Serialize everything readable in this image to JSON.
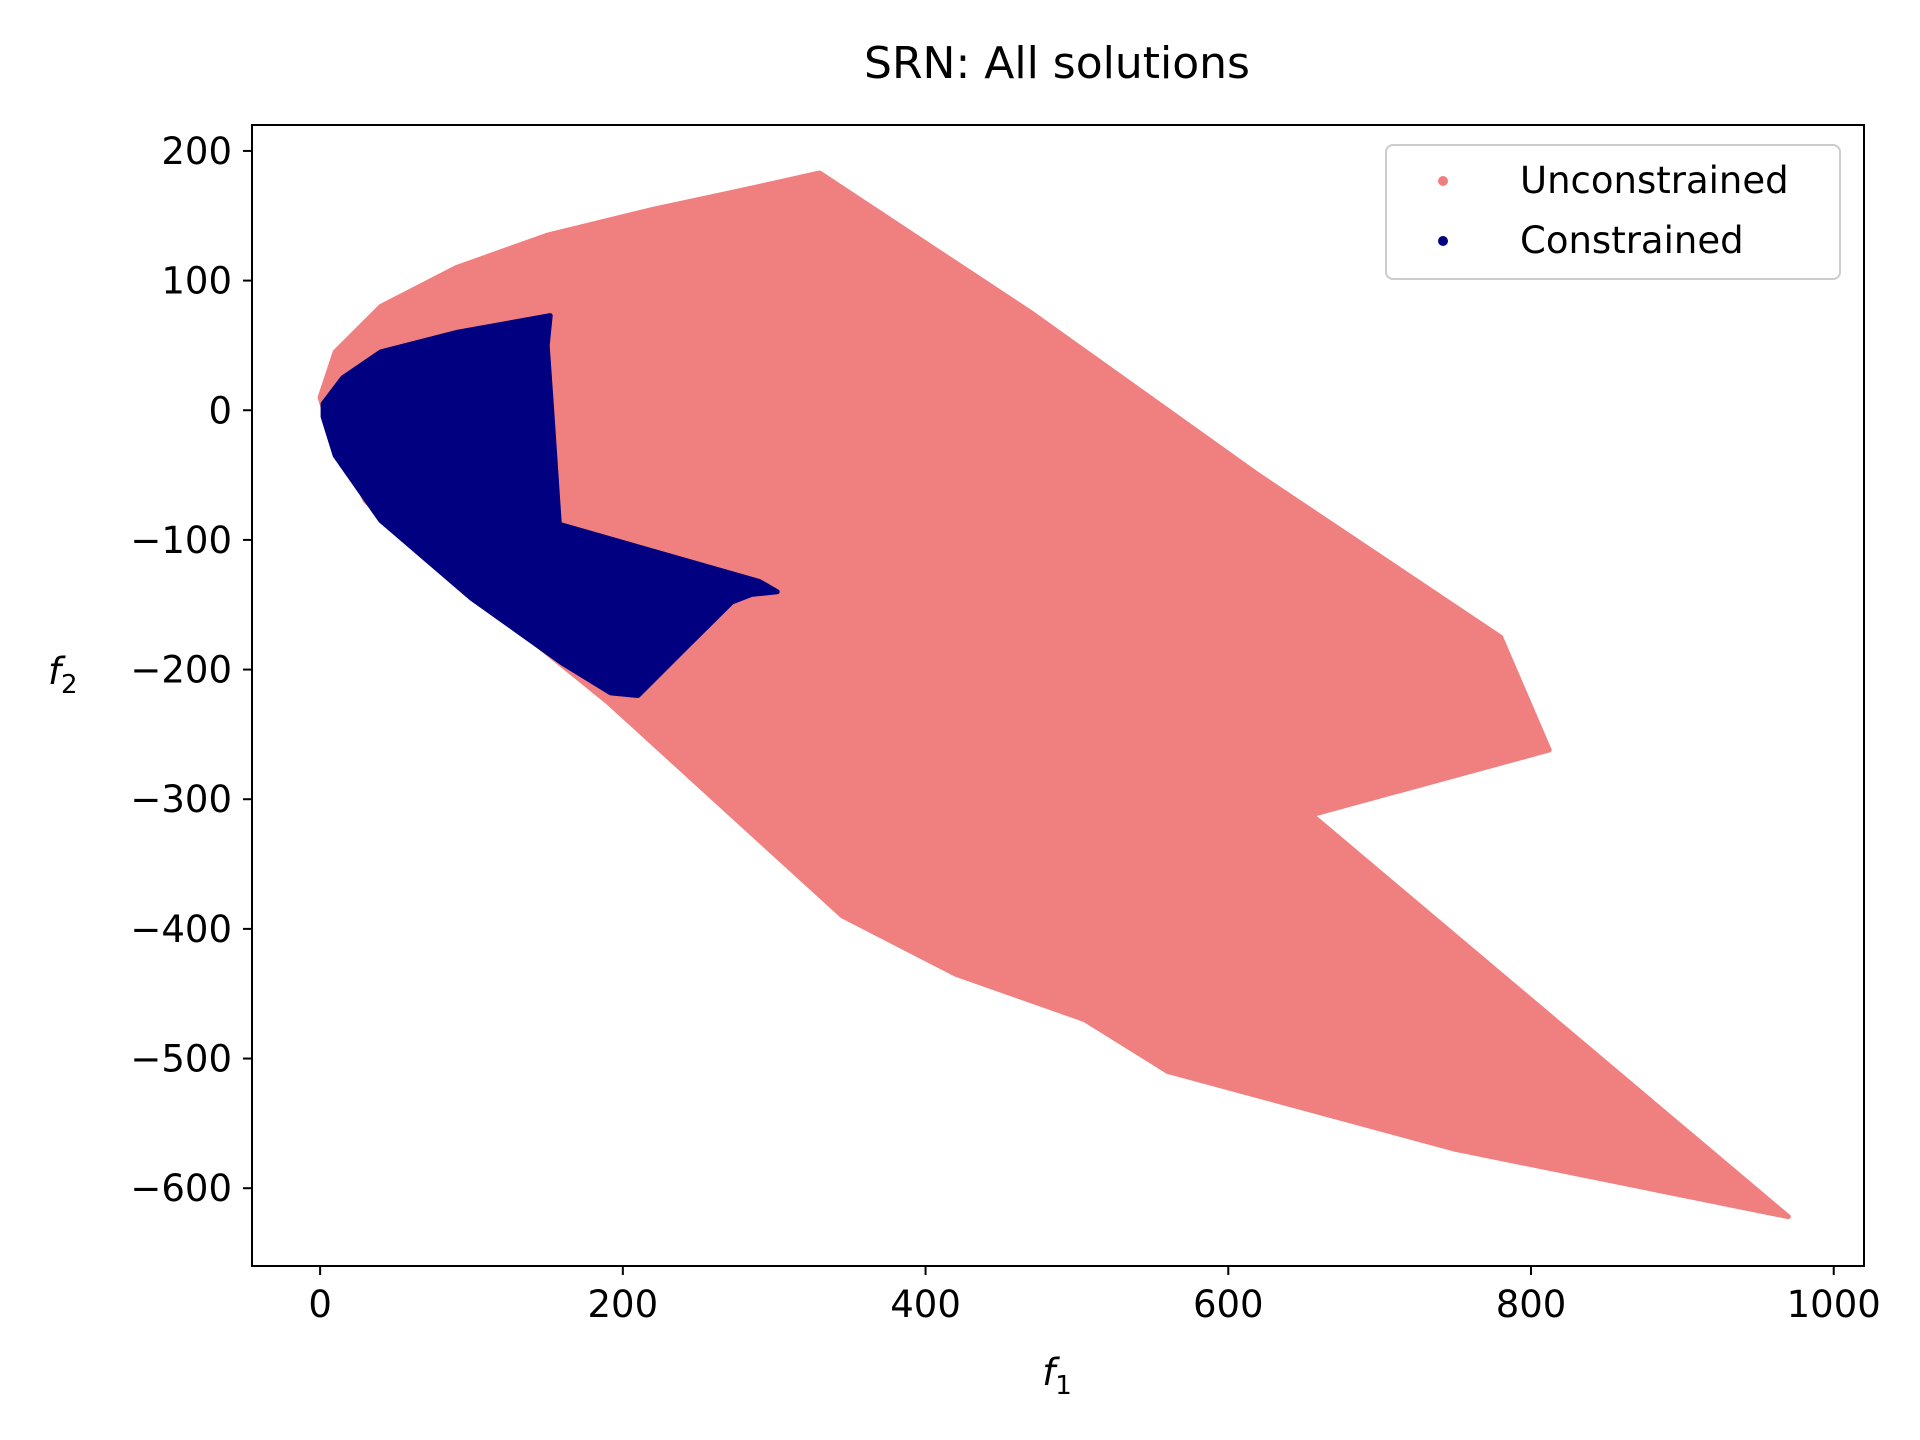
{
  "chart_data": {
    "type": "scatter",
    "title": "SRN: All solutions",
    "xlabel": "f",
    "xlabel_sub": "1",
    "ylabel": "f",
    "ylabel_sub": "2",
    "xlim": [
      -45,
      1020
    ],
    "ylim": [
      -660,
      220
    ],
    "xticks": [
      0,
      200,
      400,
      600,
      800,
      1000
    ],
    "yticks": [
      200,
      100,
      0,
      -100,
      -200,
      -300,
      -400,
      -500,
      -600
    ],
    "xtick_labels": [
      "0",
      "200",
      "400",
      "600",
      "800",
      "1000"
    ],
    "ytick_labels": [
      "200",
      "100",
      "0",
      "−100",
      "−200",
      "−300",
      "−400",
      "−500",
      "−600"
    ],
    "grid": false,
    "legend_position": "upper right",
    "series": [
      {
        "name": "Unconstrained",
        "color": "#f08080",
        "region_outline": [
          [
            0,
            10
          ],
          [
            10,
            45
          ],
          [
            40,
            80
          ],
          [
            90,
            110
          ],
          [
            150,
            135
          ],
          [
            220,
            155
          ],
          [
            280,
            170
          ],
          [
            330,
            183
          ],
          [
            470,
            75
          ],
          [
            620,
            -50
          ],
          [
            780,
            -175
          ],
          [
            812,
            -262
          ],
          [
            655,
            -312
          ],
          [
            970,
            -622
          ],
          [
            750,
            -570
          ],
          [
            560,
            -510
          ],
          [
            505,
            -470
          ],
          [
            420,
            -435
          ],
          [
            345,
            -390
          ],
          [
            190,
            -225
          ],
          [
            100,
            -140
          ],
          [
            30,
            -70
          ],
          [
            5,
            -10
          ]
        ]
      },
      {
        "name": "Constrained",
        "color": "#000080",
        "region_outline": [
          [
            2,
            5
          ],
          [
            15,
            25
          ],
          [
            40,
            45
          ],
          [
            90,
            60
          ],
          [
            152,
            73
          ],
          [
            150,
            50
          ],
          [
            153,
            0
          ],
          [
            158,
            -88
          ],
          [
            290,
            -132
          ],
          [
            302,
            -140
          ],
          [
            285,
            -142
          ],
          [
            272,
            -148
          ],
          [
            240,
            -185
          ],
          [
            210,
            -220
          ],
          [
            192,
            -218
          ],
          [
            160,
            -195
          ],
          [
            100,
            -145
          ],
          [
            40,
            -85
          ],
          [
            10,
            -35
          ],
          [
            2,
            -5
          ]
        ]
      }
    ]
  }
}
